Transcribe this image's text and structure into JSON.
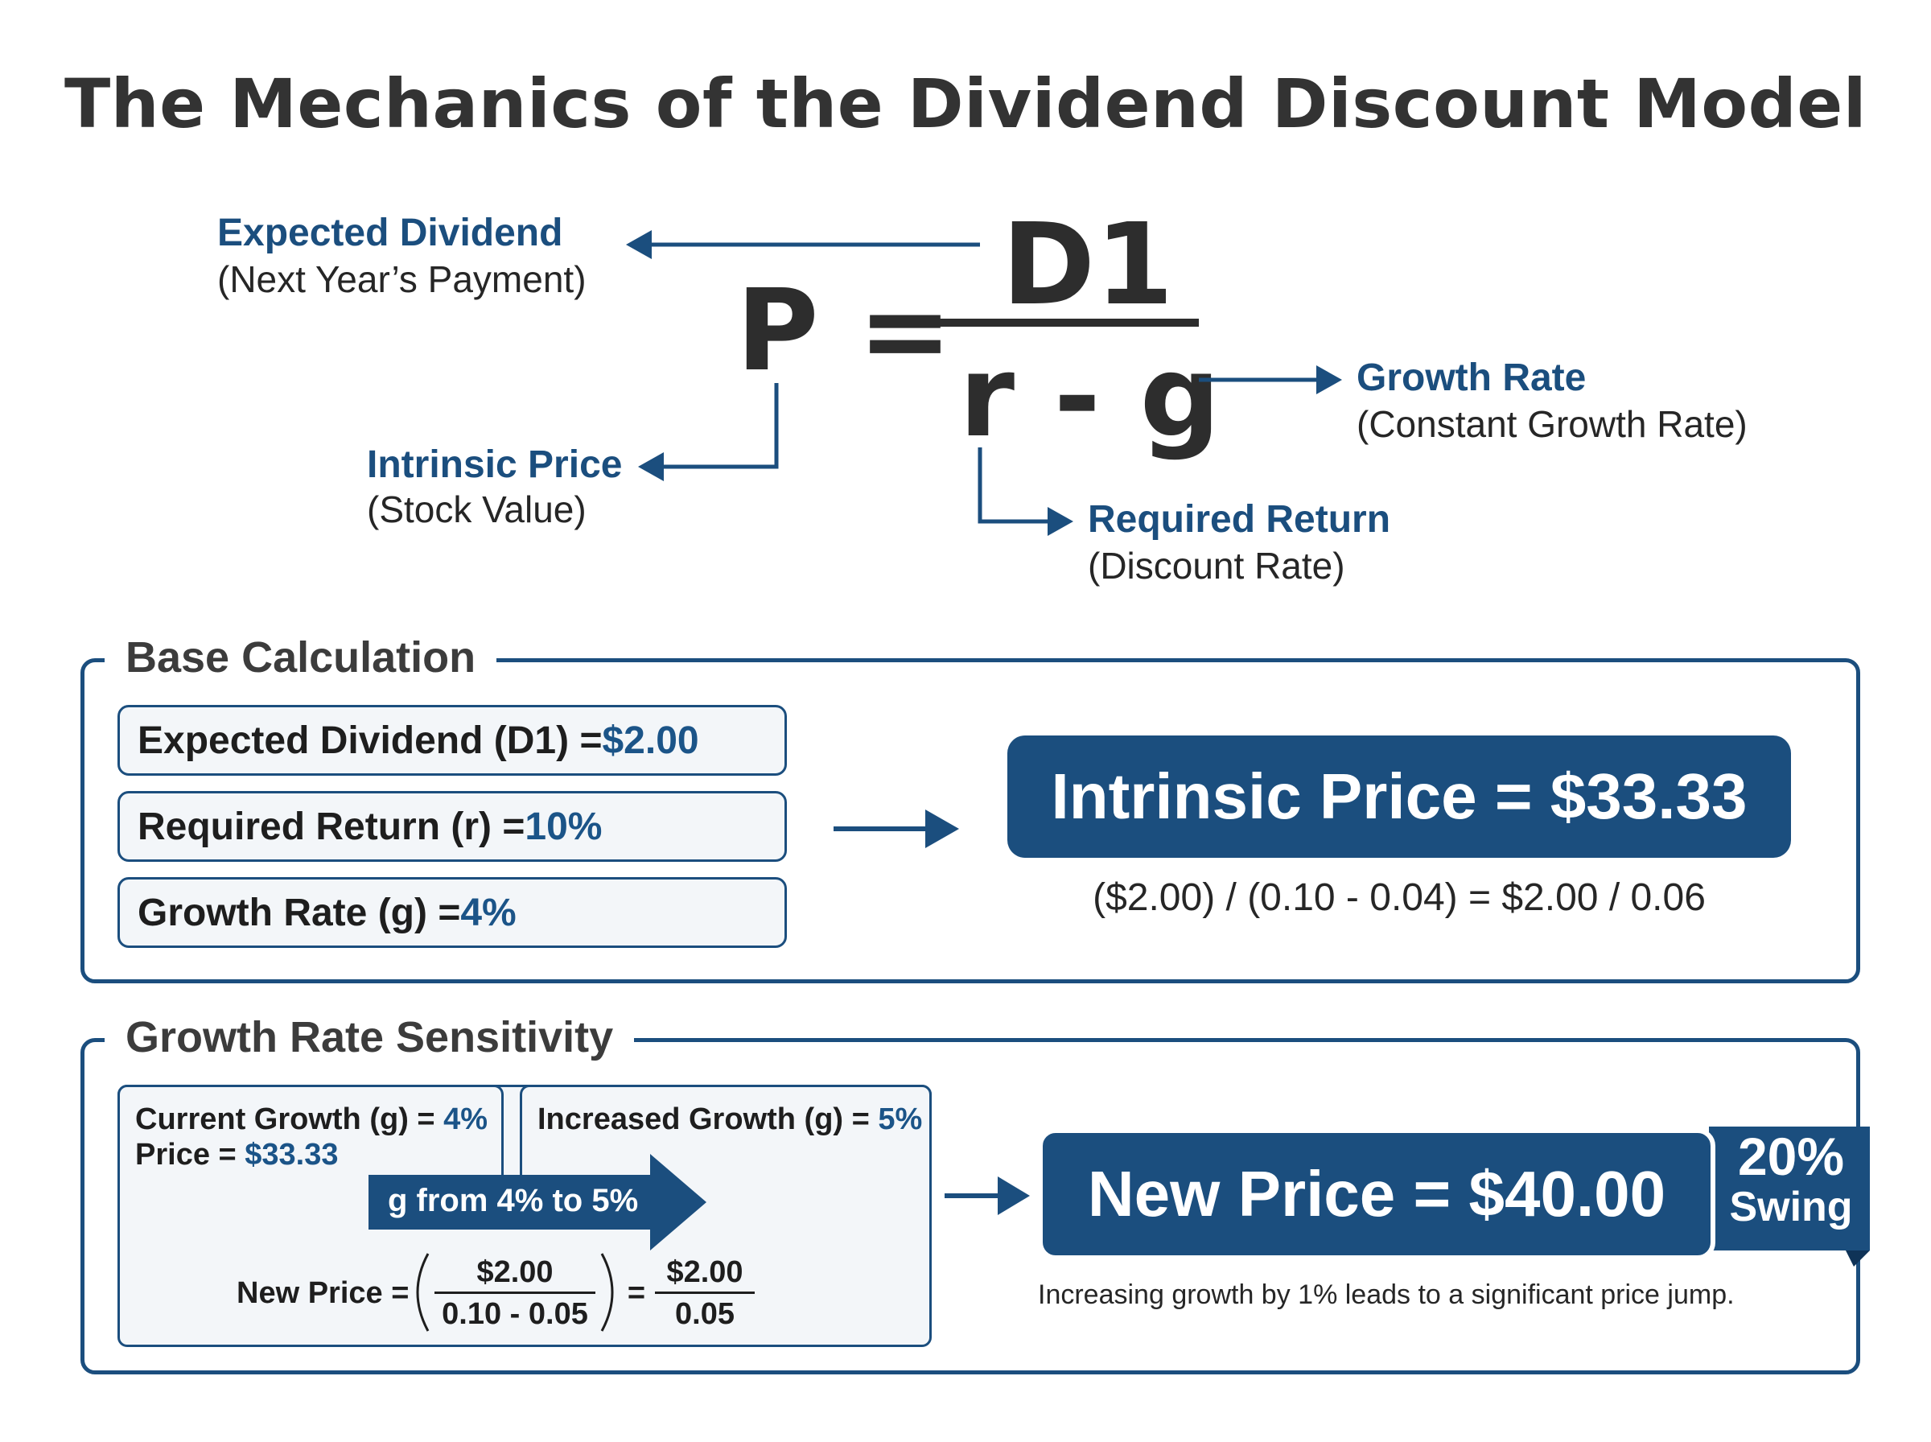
{
  "title": "The Mechanics of the Dividend Discount Model",
  "formula": {
    "lhs": "P =",
    "numerator": "D1",
    "denominator": "r - g"
  },
  "annotations": {
    "expected_dividend": {
      "heading": "Expected Dividend",
      "sub": "(Next Year’s Payment)"
    },
    "intrinsic_price": {
      "heading": "Intrinsic Price",
      "sub": "(Stock Value)"
    },
    "growth_rate": {
      "heading": "Growth Rate",
      "sub": "(Constant Growth Rate)"
    },
    "required_return": {
      "heading": "Required Return",
      "sub": "(Discount Rate)"
    }
  },
  "base_calculation": {
    "title": "Base Calculation",
    "inputs": [
      {
        "label": "Expected Dividend (D1) = ",
        "value": "$2.00"
      },
      {
        "label": "Required Return (r) = ",
        "value": "10%"
      },
      {
        "label": "Growth Rate (g) = ",
        "value": "4%"
      }
    ],
    "result": "Intrinsic Price = $33.33",
    "equation": "($2.00) / (0.10 - 0.04) = $2.00 / 0.06"
  },
  "sensitivity": {
    "title": "Growth Rate Sensitivity",
    "current_label": "Current Growth (g) = ",
    "current_value": "4%",
    "price_label": "Price = ",
    "price_value": "$33.33",
    "increased_label": "Increased Growth (g) = ",
    "increased_value": "5%",
    "change_arrow": "g from 4% to 5%",
    "new_price_label": "New Price =",
    "frac1_num": "$2.00",
    "frac1_den": "0.10 - 0.05",
    "equals": "=",
    "frac2_num": "$2.00",
    "frac2_den": "0.05",
    "result": "New Price = $40.00",
    "swing_pct": "20%",
    "swing_word": "Swing",
    "note": "Increasing growth by 1% leads to a significant price jump."
  },
  "colors": {
    "accent": "#1b4e7e",
    "text": "#262626",
    "panel": "#f3f6f9"
  },
  "icons": [
    "arrow-left-icon",
    "arrow-right-icon",
    "elbow-arrow-icon"
  ]
}
